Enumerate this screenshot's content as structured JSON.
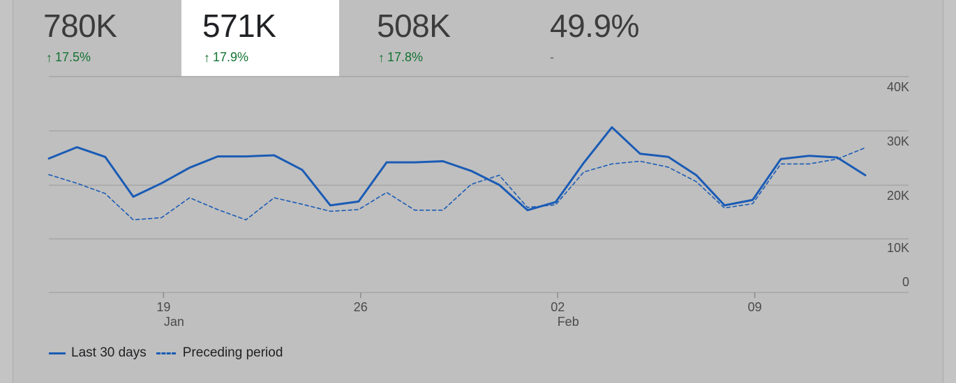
{
  "metrics": [
    {
      "value": "780K",
      "change": "17.5%",
      "trend": "up",
      "selected": false
    },
    {
      "value": "571K",
      "change": "17.9%",
      "trend": "up",
      "selected": true
    },
    {
      "value": "508K",
      "change": "17.8%",
      "trend": "up",
      "selected": false
    },
    {
      "value": "49.9%",
      "change": "-",
      "trend": "none",
      "selected": false
    }
  ],
  "colors": {
    "series": "#1a5bb5",
    "positive": "#137333"
  },
  "chart_data": {
    "type": "line",
    "title": "",
    "xlabel": "",
    "ylabel": "",
    "ylim": [
      0,
      40000
    ],
    "y_ticks": [
      "40K",
      "30K",
      "20K",
      "10K",
      "0"
    ],
    "y_tick_values": [
      40000,
      30000,
      20000,
      10000,
      0
    ],
    "x_tick_labels": [
      {
        "day": "19",
        "month": "Jan",
        "index": 4
      },
      {
        "day": "26",
        "month": "",
        "index": 11
      },
      {
        "day": "02",
        "month": "Feb",
        "index": 18
      },
      {
        "day": "09",
        "month": "",
        "index": 25
      }
    ],
    "x": [
      "Jan 15",
      "Jan 16",
      "Jan 17",
      "Jan 18",
      "Jan 19",
      "Jan 20",
      "Jan 21",
      "Jan 22",
      "Jan 23",
      "Jan 24",
      "Jan 25",
      "Jan 26",
      "Jan 27",
      "Jan 28",
      "Jan 29",
      "Jan 30",
      "Jan 31",
      "Feb 01",
      "Feb 02",
      "Feb 03",
      "Feb 04",
      "Feb 05",
      "Feb 06",
      "Feb 07",
      "Feb 08",
      "Feb 09",
      "Feb 10",
      "Feb 11",
      "Feb 12",
      "Feb 13"
    ],
    "series": [
      {
        "name": "Last 30 days",
        "style": "solid",
        "values": [
          24900,
          27000,
          25200,
          17800,
          20300,
          23200,
          25300,
          25300,
          25500,
          22800,
          16200,
          16900,
          24200,
          24200,
          24400,
          22600,
          20000,
          15300,
          16800,
          24100,
          30700,
          25800,
          25200,
          21800,
          16200,
          17200,
          24800,
          25400,
          25100,
          21800
        ]
      },
      {
        "name": "Preceding period",
        "style": "dashed",
        "values": [
          21900,
          20300,
          18400,
          13500,
          13900,
          17600,
          15400,
          13500,
          17600,
          16400,
          15100,
          15400,
          18600,
          15300,
          15300,
          20100,
          21800,
          15800,
          16300,
          22400,
          23900,
          24400,
          23300,
          20600,
          15700,
          16500,
          23900,
          23900,
          24800,
          26900
        ]
      }
    ],
    "legend_position": "bottom-left",
    "grid": true
  }
}
